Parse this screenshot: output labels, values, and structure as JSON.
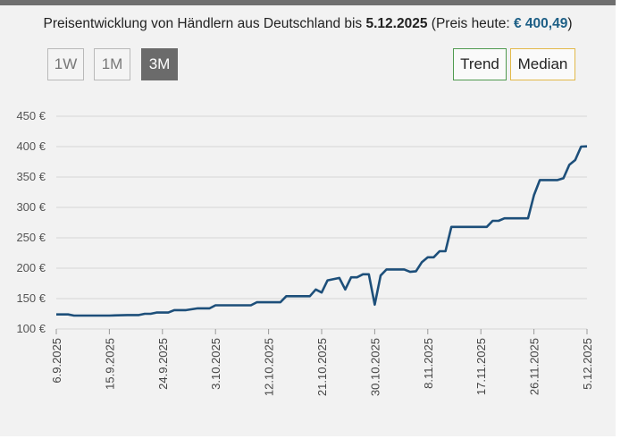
{
  "header": {
    "title_prefix": "Preisentwicklung von Händlern aus Deutschland bis",
    "date": "5.12.2025",
    "price_prefix": "(Preis heute:",
    "price": "€ 400,49",
    "price_suffix": ")"
  },
  "range_buttons": [
    {
      "label": "1W",
      "active": false
    },
    {
      "label": "1M",
      "active": false
    },
    {
      "label": "3M",
      "active": true
    }
  ],
  "toggles": {
    "trend": "Trend",
    "median": "Median"
  },
  "colors": {
    "line": "#1d4f7a",
    "trend": "#4f9a4f",
    "median": "#e2b94a",
    "active_button": "#6b6b6b"
  },
  "chart_data": {
    "type": "line",
    "title": "Preisentwicklung",
    "xlabel": "",
    "ylabel": "",
    "ylim": [
      100,
      450
    ],
    "yticks": [
      100,
      150,
      200,
      250,
      300,
      350,
      400,
      450
    ],
    "ytick_labels": [
      "100 €",
      "150 €",
      "200 €",
      "250 €",
      "300 €",
      "350 €",
      "400 €",
      "450 €"
    ],
    "xlim_days": [
      0,
      90
    ],
    "xticks": [
      {
        "day": 0,
        "label": "6.9.2025"
      },
      {
        "day": 9,
        "label": "15.9.2025"
      },
      {
        "day": 18,
        "label": "24.9.2025"
      },
      {
        "day": 27,
        "label": "3.10.2025"
      },
      {
        "day": 36,
        "label": "12.10.2025"
      },
      {
        "day": 45,
        "label": "21.10.2025"
      },
      {
        "day": 54,
        "label": "30.10.2025"
      },
      {
        "day": 63,
        "label": "8.11.2025"
      },
      {
        "day": 72,
        "label": "17.11.2025"
      },
      {
        "day": 81,
        "label": "26.11.2025"
      },
      {
        "day": 90,
        "label": "5.12.2025"
      }
    ],
    "series": [
      {
        "name": "Preis",
        "points": [
          [
            0,
            124
          ],
          [
            2,
            124
          ],
          [
            3,
            122
          ],
          [
            6,
            122
          ],
          [
            9,
            122
          ],
          [
            12,
            123
          ],
          [
            14,
            123
          ],
          [
            15,
            125
          ],
          [
            16,
            125
          ],
          [
            17,
            127
          ],
          [
            19,
            127
          ],
          [
            20,
            131
          ],
          [
            22,
            131
          ],
          [
            24,
            134
          ],
          [
            26,
            134
          ],
          [
            27,
            139
          ],
          [
            33,
            139
          ],
          [
            34,
            144
          ],
          [
            38,
            144
          ],
          [
            39,
            154
          ],
          [
            43,
            154
          ],
          [
            44,
            165
          ],
          [
            45,
            160
          ],
          [
            46,
            180
          ],
          [
            48,
            184
          ],
          [
            49,
            165
          ],
          [
            50,
            185
          ],
          [
            51,
            185
          ],
          [
            52,
            190
          ],
          [
            53,
            190
          ],
          [
            54,
            140
          ],
          [
            55,
            188
          ],
          [
            56,
            198
          ],
          [
            59,
            198
          ],
          [
            60,
            194
          ],
          [
            61,
            195
          ],
          [
            62,
            210
          ],
          [
            63,
            218
          ],
          [
            64,
            218
          ],
          [
            65,
            228
          ],
          [
            66,
            228
          ],
          [
            67,
            268
          ],
          [
            73,
            268
          ],
          [
            74,
            278
          ],
          [
            75,
            278
          ],
          [
            76,
            282
          ],
          [
            80,
            282
          ],
          [
            81,
            320
          ],
          [
            82,
            345
          ],
          [
            85,
            345
          ],
          [
            86,
            348
          ],
          [
            87,
            370
          ],
          [
            88,
            378
          ],
          [
            89,
            400
          ],
          [
            90,
            400.49
          ]
        ]
      }
    ]
  }
}
